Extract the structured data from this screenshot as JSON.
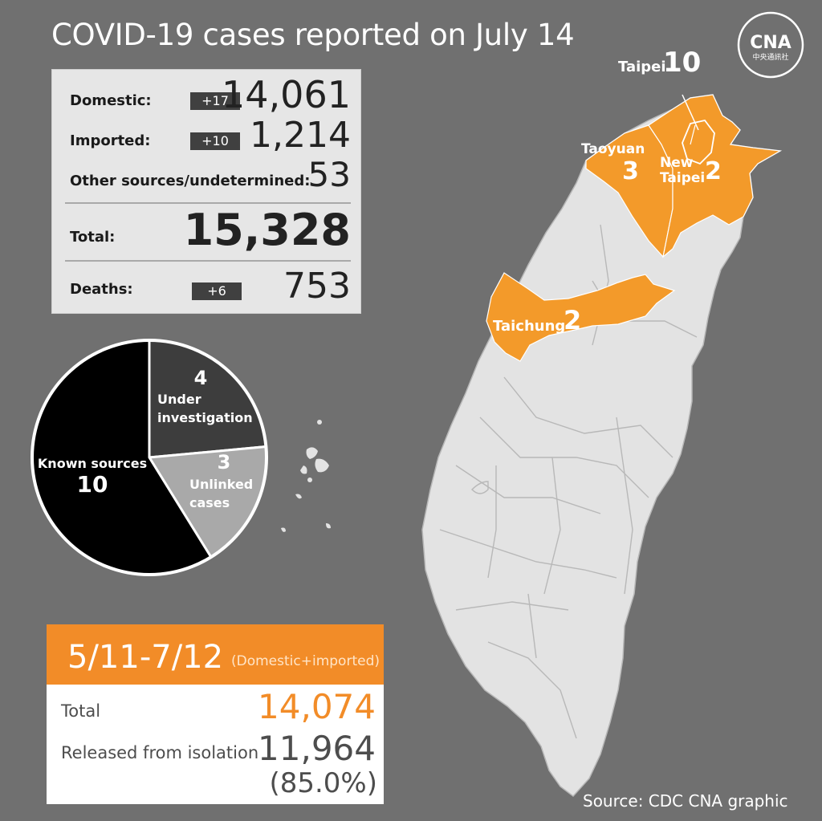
{
  "title": "COVID-19 cases reported on July 14",
  "logo": {
    "text": "CNA",
    "caption": "中央通訊社"
  },
  "stats": {
    "domestic": {
      "label": "Domestic:",
      "delta": "+17",
      "value": "14,061"
    },
    "imported": {
      "label": "Imported:",
      "delta": "+10",
      "value": "1,214"
    },
    "other": {
      "label": "Other sources/undetermined:",
      "value": "53"
    },
    "total": {
      "label": "Total:",
      "value": "15,328"
    },
    "deaths": {
      "label": "Deaths:",
      "delta": "+6",
      "value": "753"
    }
  },
  "chart_data": {
    "type": "pie",
    "slices": [
      {
        "label": "Known sources",
        "value": 10,
        "color": "#000000"
      },
      {
        "label": "Under investigation",
        "value": 4,
        "color": "#3d3d3d"
      },
      {
        "label": "Unlinked cases",
        "value": 3,
        "color": "#a9a9a9"
      }
    ],
    "legend": "none"
  },
  "pie_labels": {
    "known": {
      "line1": "Known sources",
      "num": "10"
    },
    "under": {
      "num": "4",
      "line1": "Under",
      "line2": "investigation"
    },
    "unlinked": {
      "num": "3",
      "line1": "Unlinked",
      "line2": "cases"
    }
  },
  "cumulative": {
    "range": "5/11-7/12",
    "note": "(Domestic+imported)",
    "total_label": "Total",
    "total_value": "14,074",
    "released_label": "Released from isolation",
    "released_value": "11,964",
    "released_pct": "(85.0%)"
  },
  "map": {
    "cities": [
      {
        "name": "Taipei",
        "count": "10",
        "highlight": true
      },
      {
        "name": "Taoyuan",
        "count": "3",
        "highlight": true
      },
      {
        "name": "New Taipei",
        "line1": "New",
        "line2": "Taipei",
        "count": "2",
        "highlight": true
      },
      {
        "name": "Taichung",
        "count": "2",
        "highlight": true
      }
    ],
    "colors": {
      "land": "#e3e3e3",
      "border": "#b8b8b8",
      "highlight": "#f39a2a"
    }
  },
  "source": "Source: CDC  CNA graphic"
}
